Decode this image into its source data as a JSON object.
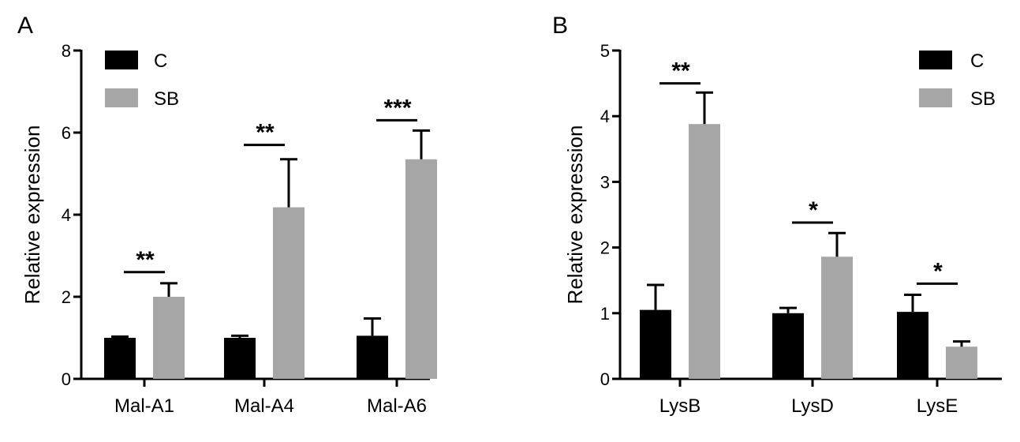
{
  "chart_data": [
    {
      "type": "bar",
      "panel_label": "A",
      "ylabel": "Relative expression",
      "xlabel": "",
      "ylim": [
        0,
        8
      ],
      "yticks": [
        0,
        2,
        4,
        6,
        8
      ],
      "categories": [
        "Mal-A1",
        "Mal-A4",
        "Mal-A6"
      ],
      "series": [
        {
          "name": "C",
          "color": "#000000",
          "values": [
            1.0,
            1.0,
            1.05
          ],
          "errors": [
            0.03,
            0.05,
            0.42
          ]
        },
        {
          "name": "SB",
          "color": "#a6a6a6",
          "values": [
            2.0,
            4.18,
            5.35
          ],
          "errors": [
            0.33,
            1.17,
            0.7
          ]
        }
      ],
      "significance": [
        {
          "category": "Mal-A1",
          "label": "**",
          "level": 2.6
        },
        {
          "category": "Mal-A4",
          "label": "**",
          "level": 5.7
        },
        {
          "category": "Mal-A6",
          "label": "***",
          "level": 6.3
        }
      ],
      "legend": {
        "position": "top-left"
      }
    },
    {
      "type": "bar",
      "panel_label": "B",
      "ylabel": "Relative expression",
      "xlabel": "",
      "ylim": [
        0,
        5
      ],
      "yticks": [
        0,
        1,
        2,
        3,
        4,
        5
      ],
      "categories": [
        "LysB",
        "LysD",
        "LysE"
      ],
      "series": [
        {
          "name": "C",
          "color": "#000000",
          "values": [
            1.05,
            1.0,
            1.02
          ],
          "errors": [
            0.38,
            0.08,
            0.26
          ]
        },
        {
          "name": "SB",
          "color": "#a6a6a6",
          "values": [
            3.88,
            1.86,
            0.49
          ],
          "errors": [
            0.48,
            0.36,
            0.08
          ]
        }
      ],
      "significance": [
        {
          "category": "LysB",
          "label": "**",
          "level": 4.5
        },
        {
          "category": "LysD",
          "label": "*",
          "level": 2.38
        },
        {
          "category": "LysE",
          "label": "*",
          "level": 1.45
        }
      ],
      "legend": {
        "position": "top-right"
      }
    }
  ]
}
